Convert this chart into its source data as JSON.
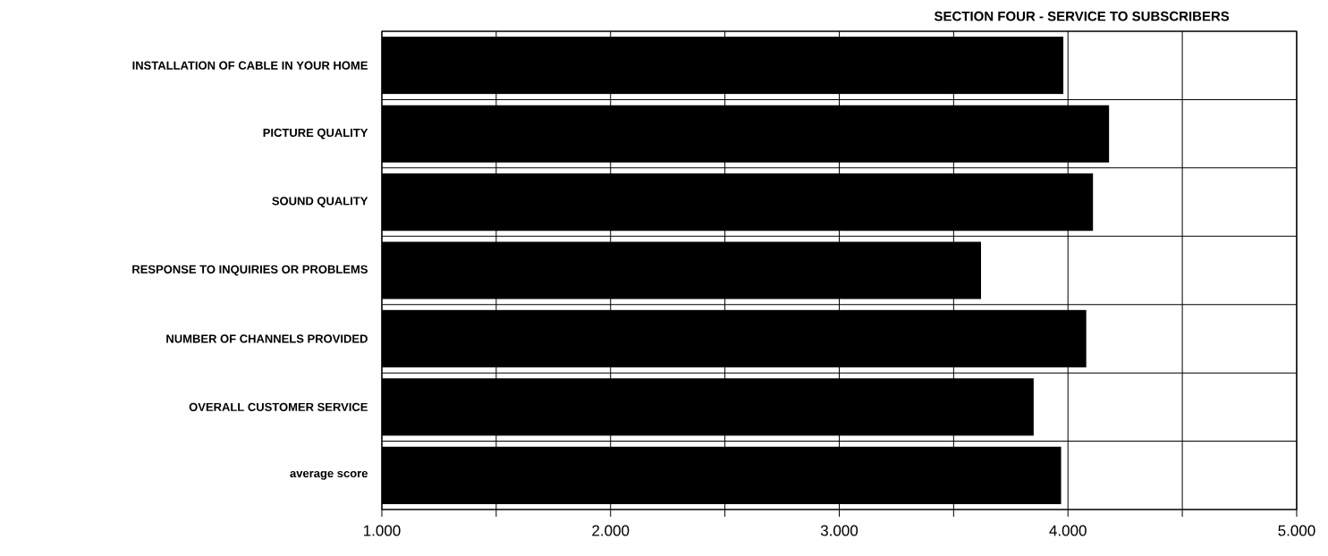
{
  "chart_data": {
    "type": "bar",
    "orientation": "horizontal",
    "title": "SECTION FOUR - SERVICE TO SUBSCRIBERS",
    "categories": [
      "INSTALLATION OF CABLE IN YOUR HOME",
      "PICTURE QUALITY",
      "SOUND QUALITY",
      "RESPONSE TO INQUIRIES OR PROBLEMS",
      "NUMBER OF CHANNELS PROVIDED",
      "OVERALL CUSTOMER SERVICE",
      "average score"
    ],
    "values": [
      3.98,
      4.18,
      4.11,
      3.62,
      4.08,
      3.85,
      3.97
    ],
    "color": "#000000",
    "xlim": [
      1,
      5
    ],
    "xticks": [
      {
        "value": 1,
        "label": "1.000"
      },
      {
        "value": 1.5,
        "label": null
      },
      {
        "value": 2,
        "label": "2.000"
      },
      {
        "value": 2.5,
        "label": null
      },
      {
        "value": 3,
        "label": "3.000"
      },
      {
        "value": 3.5,
        "label": null
      },
      {
        "value": 4,
        "label": "4.000"
      },
      {
        "value": 4.5,
        "label": null
      },
      {
        "value": 5,
        "label": "5.000"
      }
    ],
    "grid": true
  }
}
